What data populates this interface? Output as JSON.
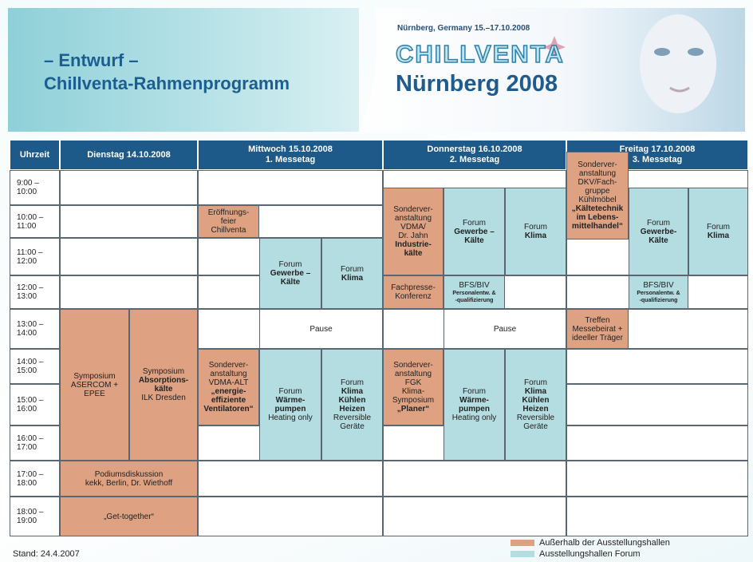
{
  "header": {
    "title_line1": "– Entwurf –",
    "title_line2": "Chillventa-Rahmenprogramm",
    "banner_dates": "Nürnberg, Germany 15.–17.10.2008",
    "banner_brand": "CHILLVENTA",
    "banner_city": "Nürnberg 2008"
  },
  "table": {
    "columns": [
      {
        "day": "Uhrzeit"
      },
      {
        "day": "Dienstag 14.10.2008"
      },
      {
        "day": "Mittwoch 15.10.2008",
        "sub": "1. Messetag"
      },
      {
        "day": "Donnerstag 16.10.2008",
        "sub": "2. Messetag"
      },
      {
        "day": "Freitag 17.10.2008",
        "sub": "3. Messetag"
      }
    ],
    "times": [
      "9:00 –\n10:00",
      "10:00 –\n11:00",
      "11:00 –\n12:00",
      "12:00 –\n13:00",
      "13:00 –\n14:00",
      "14:00 –\n15:00",
      "15:00 –\n16:00",
      "16:00 –\n17:00",
      "17:00 –\n18:00",
      "18:00 –\n19:00"
    ],
    "events": [
      {
        "lines": [
          "Symposium",
          "ASERCOM +",
          "EPEE"
        ]
      },
      {
        "lines": [
          "Symposium",
          "Absorptions-",
          "kälte",
          "ILK Dresden"
        ]
      },
      {
        "lines": [
          "Podiumsdiskussion",
          "kekk, Berlin, Dr. Wiethoff"
        ]
      },
      {
        "lines": [
          "„Get-together“"
        ]
      },
      {
        "lines": [
          "Eröffnungs-",
          "feier",
          "Chillventa"
        ]
      },
      {
        "lines": [
          "Forum",
          "Gewerbe –",
          "Kälte"
        ]
      },
      {
        "lines": [
          "Forum",
          "Klima"
        ]
      },
      {
        "lines": [
          "Pause"
        ]
      },
      {
        "lines": [
          "Sonderver-",
          "anstaltung",
          "VDMA-ALT",
          "„energie-",
          "effiziente",
          "Ventilatoren“"
        ]
      },
      {
        "lines": [
          "Forum",
          "Wärme-",
          "pumpen",
          "Heating only"
        ]
      },
      {
        "lines": [
          "Forum",
          "Klima",
          "Kühlen",
          "Heizen",
          "Reversible",
          "Geräte"
        ]
      },
      {
        "lines": [
          "Sonderver-",
          "anstaltung",
          "VDMA/",
          "Dr. Jahn",
          "Industrie-",
          "kälte"
        ]
      },
      {
        "lines": [
          "Forum",
          "Gewerbe –",
          "Kälte"
        ]
      },
      {
        "lines": [
          "Forum",
          "Klima"
        ]
      },
      {
        "lines": [
          "Fachpresse-",
          "Konferenz"
        ]
      },
      {
        "lines": [
          "BFS/BIV",
          "Personalentw. &",
          "-qualifizierung"
        ]
      },
      {
        "lines": [
          "Pause"
        ]
      },
      {
        "lines": [
          "Sonderver-",
          "anstaltung",
          "FGK",
          "Klima-",
          "Symposium",
          "„Planer“"
        ]
      },
      {
        "lines": [
          "Forum",
          "Wärme-",
          "pumpen",
          "Heating only"
        ]
      },
      {
        "lines": [
          "Forum",
          "Klima",
          "Kühlen",
          "Heizen",
          "Reversible",
          "Geräte"
        ]
      },
      {
        "lines": [
          "Sonderver-",
          "anstaltung",
          "DKV/Fach-",
          "gruppe",
          "Kühlmöbel",
          "„Kältetechnik",
          "im Lebens-",
          "mittelhandel“"
        ]
      },
      {
        "lines": [
          "Forum",
          "Gewerbe-",
          "Kälte"
        ]
      },
      {
        "lines": [
          "Forum",
          "Klima"
        ]
      },
      {
        "lines": [
          "BFS/BIV",
          "Personalentw. &",
          "-qualifizierung"
        ]
      },
      {
        "lines": [
          "Treffen",
          "Messebeirat +",
          "ideeller Träger"
        ]
      }
    ]
  },
  "legend": [
    "Außerhalb der Ausstellungshallen",
    "Ausstellungshallen Forum"
  ],
  "footer": "Stand: 24.4.2007"
}
